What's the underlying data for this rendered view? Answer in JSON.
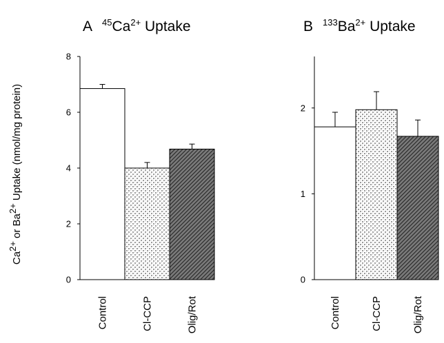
{
  "ylabel": {
    "part1": "Ca",
    "sup1": "2+",
    "part2": " or Ba",
    "sup2": "2+",
    "part3": " Uptake (nmol/mg protein)"
  },
  "colors": {
    "control": "#ffffff",
    "clccp": "stipple-light-gray",
    "olig_rot": "dark-diagonal-hatch"
  },
  "chart_data": [
    {
      "type": "bar",
      "panel": "A",
      "title_parts": {
        "letter": "A",
        "isotope": "45",
        "element": "Ca",
        "charge": "2+",
        "suffix": " Uptake"
      },
      "categories": [
        "Control",
        "Cl-CCP",
        "Olig/Rot"
      ],
      "values": [
        6.85,
        4.0,
        4.68
      ],
      "errors": [
        0.15,
        0.2,
        0.18
      ],
      "ylim": [
        0,
        8
      ],
      "yticks": [
        "0",
        "2",
        "4",
        "6",
        "8"
      ]
    },
    {
      "type": "bar",
      "panel": "B",
      "title_parts": {
        "letter": "B",
        "isotope": "133",
        "element": "Ba",
        "charge": "2+",
        "suffix": " Uptake"
      },
      "categories": [
        "Control",
        "Cl-CCP",
        "Olig/Rot"
      ],
      "values": [
        1.78,
        1.98,
        1.67
      ],
      "errors": [
        0.17,
        0.21,
        0.19
      ],
      "ylim": [
        0,
        2.6
      ],
      "yticks": [
        "0",
        "1",
        "2"
      ]
    }
  ]
}
